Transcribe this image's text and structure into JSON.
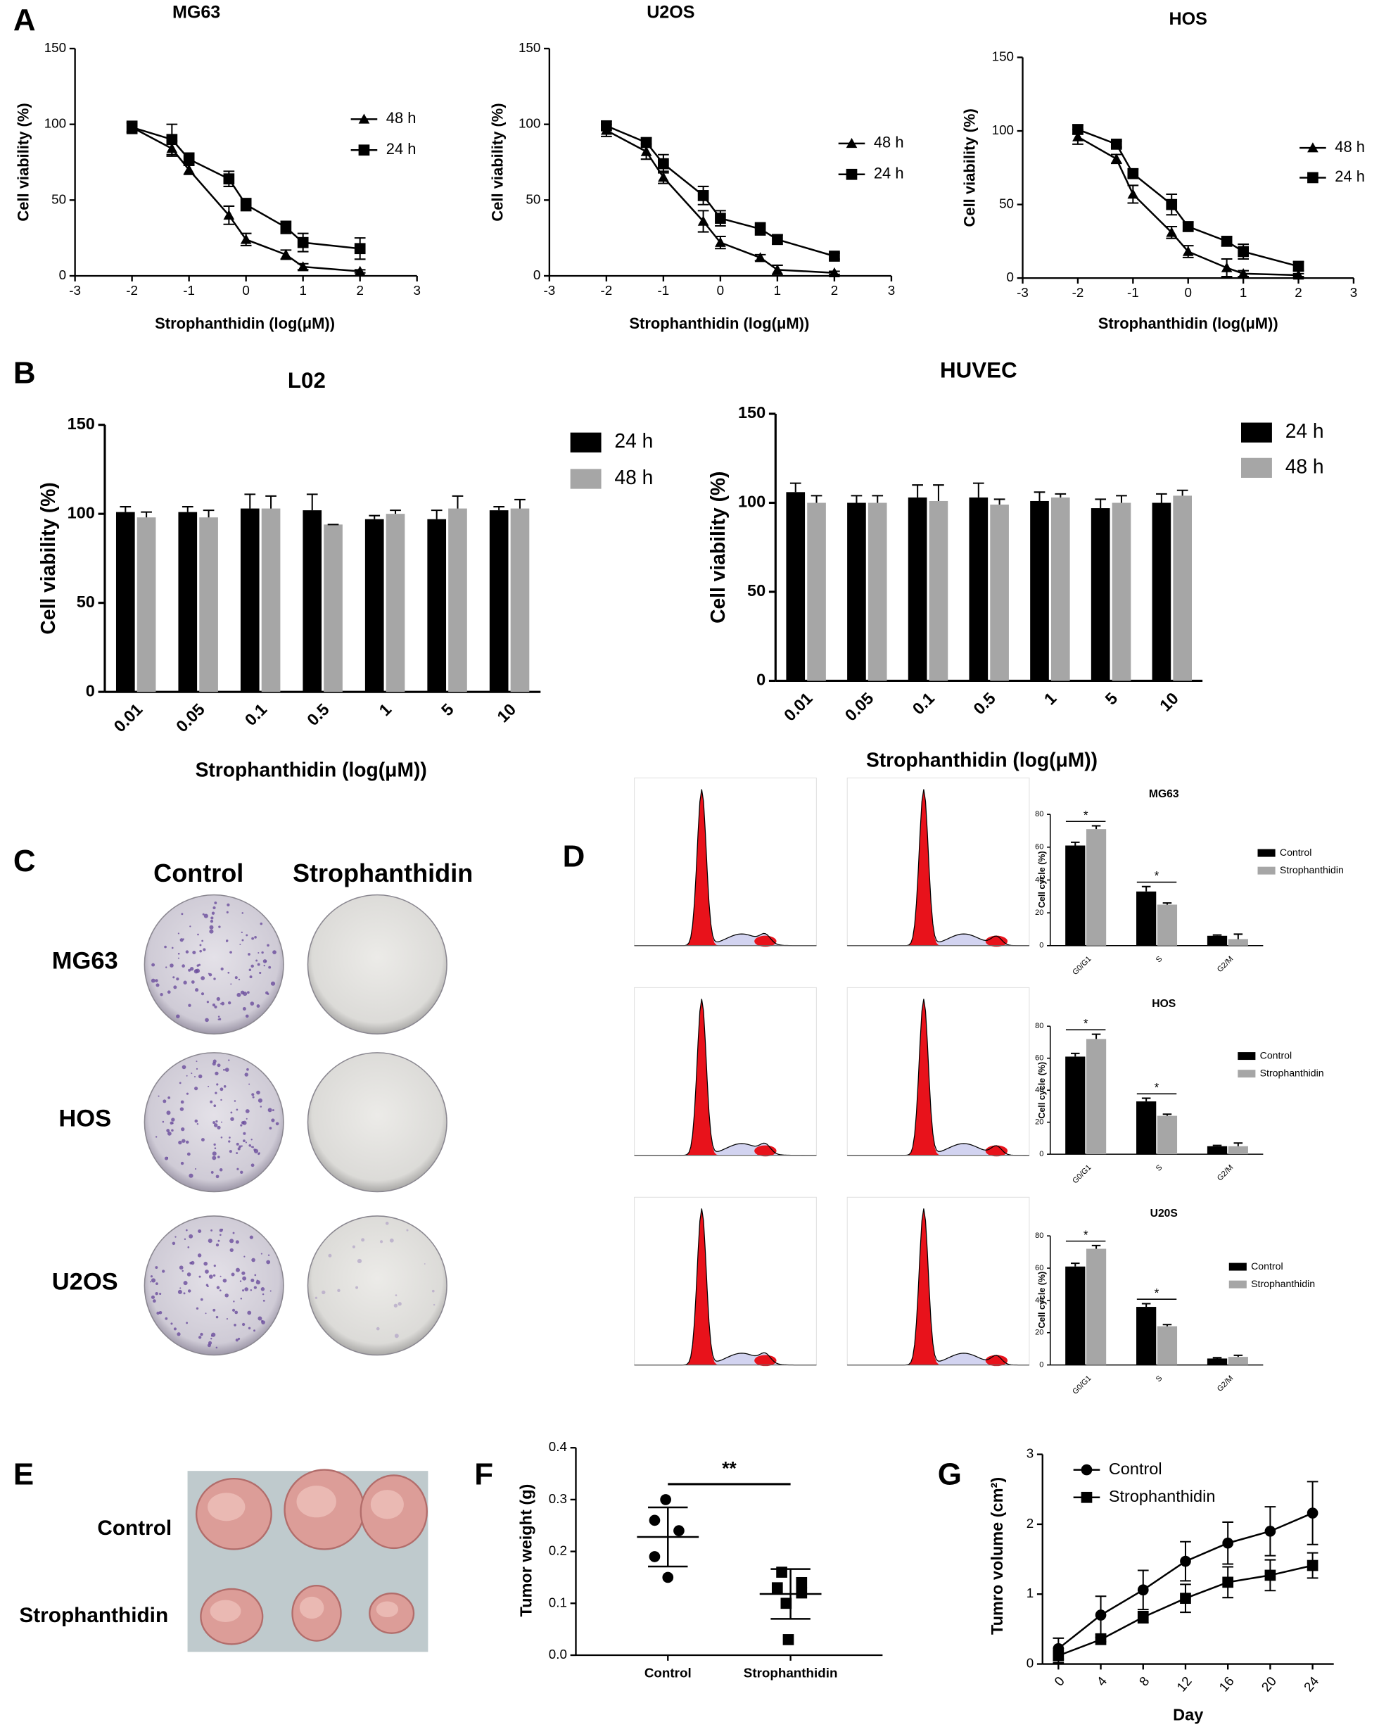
{
  "panel_labels": [
    "A",
    "B",
    "C",
    "D",
    "E",
    "F",
    "G"
  ],
  "colony_assay": {
    "columns": [
      "Control",
      "Strophanthidin"
    ],
    "rows": [
      "MG63",
      "HOS",
      "U2OS"
    ]
  },
  "tumor_photo": {
    "rows": [
      "Control",
      "Strophanthidin"
    ]
  },
  "chart_data": [
    {
      "type": "line",
      "title": "MG63",
      "x_label": "Strophanthidin (log(μM))",
      "y_label": "Cell viability (%)",
      "x": [
        -2,
        -1.3,
        -1,
        -0.3,
        0,
        0.7,
        1,
        2
      ],
      "xlim": [
        -3,
        3
      ],
      "xticks": [
        -3,
        -2,
        -1,
        0,
        1,
        2,
        3
      ],
      "ylim": [
        0,
        150
      ],
      "yticks": [
        0,
        50,
        100,
        150
      ],
      "series": [
        {
          "name": "48 h",
          "color": "#000000",
          "marker": "triangle",
          "values": [
            98,
            84,
            70,
            40,
            24,
            14,
            6,
            3
          ],
          "errors": [
            3,
            5,
            3,
            6,
            4,
            3,
            2,
            1
          ]
        },
        {
          "name": "24 h",
          "color": "#000000",
          "marker": "square",
          "values": [
            98,
            90,
            77,
            64,
            47,
            32,
            22,
            18
          ],
          "errors": [
            4,
            10,
            4,
            5,
            4,
            4,
            6,
            7
          ]
        }
      ]
    },
    {
      "type": "line",
      "title": "U2OS",
      "x_label": "Strophanthidin (log(μM))",
      "y_label": "Cell viability (%)",
      "x": [
        -2,
        -1.3,
        -1,
        -0.3,
        0,
        0.7,
        1,
        2
      ],
      "xlim": [
        -3,
        3
      ],
      "xticks": [
        -3,
        -2,
        -1,
        0,
        1,
        2,
        3
      ],
      "ylim": [
        0,
        150
      ],
      "yticks": [
        0,
        50,
        100,
        150
      ],
      "series": [
        {
          "name": "48 h",
          "color": "#000000",
          "marker": "triangle",
          "values": [
            96,
            82,
            65,
            36,
            22,
            12,
            4,
            2
          ],
          "errors": [
            4,
            5,
            4,
            7,
            4,
            2,
            3,
            1
          ]
        },
        {
          "name": "24 h",
          "color": "#000000",
          "marker": "square",
          "values": [
            99,
            88,
            74,
            53,
            38,
            31,
            24,
            13
          ],
          "errors": [
            3,
            3,
            6,
            6,
            5,
            4,
            3,
            2
          ]
        }
      ]
    },
    {
      "type": "line",
      "title": "HOS",
      "x_label": "Strophanthidin (log(μM))",
      "y_label": "Cell viability (%)",
      "x": [
        -2,
        -1.3,
        -1,
        -0.3,
        0,
        0.7,
        1,
        2
      ],
      "xlim": [
        -3,
        3
      ],
      "xticks": [
        -3,
        -2,
        -1,
        0,
        1,
        2,
        3
      ],
      "ylim": [
        0,
        150
      ],
      "yticks": [
        0,
        50,
        100,
        150
      ],
      "series": [
        {
          "name": "48 h",
          "color": "#000000",
          "marker": "triangle",
          "values": [
            96,
            81,
            57,
            31,
            18,
            7,
            3,
            2
          ],
          "errors": [
            5,
            3,
            6,
            4,
            4,
            6,
            2,
            1
          ]
        },
        {
          "name": "24 h",
          "color": "#000000",
          "marker": "square",
          "values": [
            101,
            91,
            71,
            50,
            35,
            25,
            18,
            8
          ],
          "errors": [
            3,
            2,
            3,
            7,
            3,
            3,
            5,
            3
          ]
        }
      ]
    },
    {
      "type": "bar",
      "title": "L02",
      "x_label": "Strophanthidin (log(μM))",
      "y_label": "Cell viability (%)",
      "categories": [
        "0.01",
        "0.05",
        "0.1",
        "0.5",
        "1",
        "5",
        "10"
      ],
      "ylim": [
        0,
        150
      ],
      "yticks": [
        0,
        50,
        100,
        150
      ],
      "series": [
        {
          "name": "24 h",
          "color": "#000000",
          "values": [
            101,
            101,
            103,
            102,
            97,
            97,
            102
          ],
          "errors": [
            3,
            3,
            8,
            9,
            2,
            5,
            2
          ]
        },
        {
          "name": "48 h",
          "color": "#a6a6a6",
          "values": [
            98,
            98,
            103,
            94,
            100,
            103,
            103
          ],
          "errors": [
            3,
            4,
            7,
            0,
            2,
            7,
            5
          ]
        }
      ]
    },
    {
      "type": "bar",
      "title": "HUVEC",
      "x_label": "Strophanthidin (log(μM))",
      "y_label": "Cell viability (%)",
      "categories": [
        "0.01",
        "0.05",
        "0.1",
        "0.5",
        "1",
        "5",
        "10"
      ],
      "ylim": [
        0,
        150
      ],
      "yticks": [
        0,
        50,
        100,
        150
      ],
      "series": [
        {
          "name": "24 h",
          "color": "#000000",
          "values": [
            106,
            100,
            103,
            103,
            101,
            97,
            100
          ],
          "errors": [
            5,
            4,
            7,
            8,
            5,
            5,
            5
          ]
        },
        {
          "name": "48 h",
          "color": "#a6a6a6",
          "values": [
            100,
            100,
            101,
            99,
            103,
            100,
            104
          ],
          "errors": [
            4,
            4,
            9,
            3,
            2,
            4,
            3
          ]
        }
      ]
    },
    {
      "type": "bar",
      "title": "MG63",
      "y_label": "Cell cycle (%)",
      "categories": [
        "G0/G1",
        "S",
        "G2/M"
      ],
      "ylim": [
        0,
        80
      ],
      "yticks": [
        0,
        20,
        40,
        60,
        80
      ],
      "annotations": [
        "*",
        "*"
      ],
      "series": [
        {
          "name": "Control",
          "color": "#000000",
          "values": [
            61,
            33,
            6
          ],
          "errors": [
            2,
            3,
            0.5
          ]
        },
        {
          "name": "Strophanthidin",
          "color": "#a6a6a6",
          "values": [
            71,
            25,
            4
          ],
          "errors": [
            2,
            1,
            3
          ]
        }
      ]
    },
    {
      "type": "bar",
      "title": "HOS",
      "y_label": "Cell cycle (%)",
      "categories": [
        "G0/G1",
        "S",
        "G2/M"
      ],
      "ylim": [
        0,
        80
      ],
      "yticks": [
        0,
        20,
        40,
        60,
        80
      ],
      "annotations": [
        "*",
        "*"
      ],
      "series": [
        {
          "name": "Control",
          "color": "#000000",
          "values": [
            61,
            33,
            5
          ],
          "errors": [
            2,
            2,
            0.5
          ]
        },
        {
          "name": "Strophanthidin",
          "color": "#a6a6a6",
          "values": [
            72,
            24,
            5
          ],
          "errors": [
            3,
            1,
            2
          ]
        }
      ]
    },
    {
      "type": "bar",
      "title": "U20S",
      "y_label": "Cell cycle (%)",
      "categories": [
        "G0/G1",
        "S",
        "G2/M"
      ],
      "ylim": [
        0,
        80
      ],
      "yticks": [
        0,
        20,
        40,
        60,
        80
      ],
      "annotations": [
        "*",
        "*"
      ],
      "series": [
        {
          "name": "Control",
          "color": "#000000",
          "values": [
            61,
            36,
            4
          ],
          "errors": [
            2,
            2,
            0.5
          ]
        },
        {
          "name": "Strophanthidin",
          "color": "#a6a6a6",
          "values": [
            72,
            24,
            5
          ],
          "errors": [
            2,
            1,
            1
          ]
        }
      ]
    },
    {
      "type": "strip",
      "y_label": "Tumor weight (g)",
      "ylim": [
        0,
        0.4
      ],
      "yticks": [
        {
          "value": 0,
          "label": "0.0"
        },
        0.1,
        0.2,
        0.3,
        0.4
      ],
      "annotations": [
        "**"
      ],
      "groups": [
        {
          "name": "Control",
          "marker": "circle",
          "values": [
            0.3,
            0.26,
            0.24,
            0.19,
            0.15
          ],
          "mean": 0.228,
          "sd": 0.057
        },
        {
          "name": "Strophanthidin",
          "marker": "square",
          "values": [
            0.16,
            0.14,
            0.13,
            0.12,
            0.1,
            0.03
          ],
          "mean": 0.118,
          "sd": 0.048
        }
      ]
    },
    {
      "type": "line",
      "x_label": "Day",
      "y_label": "Tumro volume (cm²)",
      "x": [
        0,
        4,
        8,
        12,
        16,
        20,
        24
      ],
      "xlim": [
        -1.5,
        26
      ],
      "xticks": [
        0,
        4,
        8,
        12,
        16,
        20,
        24
      ],
      "ylim": [
        0,
        3
      ],
      "yticks": [
        0,
        1,
        2,
        3
      ],
      "series": [
        {
          "name": "Control",
          "color": "#000000",
          "marker": "circle",
          "values": [
            0.22,
            0.7,
            1.06,
            1.47,
            1.73,
            1.9,
            2.16
          ],
          "errors": [
            0.15,
            0.27,
            0.28,
            0.28,
            0.3,
            0.35,
            0.45
          ]
        },
        {
          "name": "Strophanthidin",
          "color": "#000000",
          "marker": "square",
          "values": [
            0.12,
            0.35,
            0.67,
            0.94,
            1.17,
            1.27,
            1.41
          ],
          "errors": [
            0.1,
            0.03,
            0.08,
            0.2,
            0.22,
            0.22,
            0.18
          ]
        }
      ]
    }
  ]
}
